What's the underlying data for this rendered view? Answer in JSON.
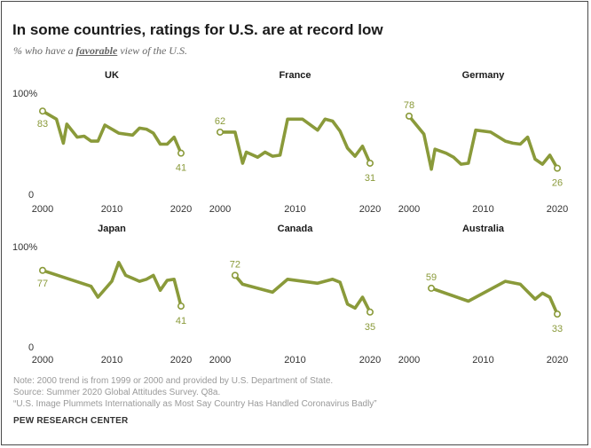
{
  "title": "In some countries, ratings for U.S. are at record low",
  "subtitle": {
    "prefix": "% who have a ",
    "emphasis": "favorable",
    "suffix": " view of the U.S."
  },
  "colors": {
    "line": "#8a9a3a",
    "label": "#8a9a3a",
    "text": "#1a1a1a",
    "axis": "#555555"
  },
  "chart_data": [
    {
      "type": "line",
      "title": "UK",
      "ylim": [
        0,
        100
      ],
      "xlim": [
        2000,
        2020
      ],
      "ytick_labels": [
        "100%",
        "0"
      ],
      "xtick_labels": [
        "2000",
        "2010",
        "2020"
      ],
      "x": [
        2000,
        2002,
        2003,
        2003.5,
        2005,
        2006,
        2007,
        2008,
        2009,
        2011,
        2013,
        2014,
        2015,
        2016,
        2017,
        2018,
        2019,
        2020
      ],
      "y": [
        83,
        75,
        51,
        70,
        57,
        58,
        53,
        53,
        69,
        61,
        59,
        66,
        65,
        61,
        50,
        50,
        57,
        41
      ],
      "start_label": "83",
      "end_label": "41"
    },
    {
      "type": "line",
      "title": "France",
      "ylim": [
        0,
        100
      ],
      "xlim": [
        2000,
        2020
      ],
      "xtick_labels": [
        "2000",
        "2010",
        "2020"
      ],
      "x": [
        2000,
        2002,
        2003,
        2003.5,
        2005,
        2006,
        2007,
        2008,
        2009,
        2011,
        2013,
        2014,
        2015,
        2016,
        2017,
        2018,
        2019,
        2020
      ],
      "y": [
        62,
        62,
        31,
        42,
        37,
        42,
        38,
        39,
        75,
        75,
        64,
        75,
        73,
        63,
        46,
        38,
        48,
        31
      ],
      "start_label": "62",
      "end_label": "31"
    },
    {
      "type": "line",
      "title": "Germany",
      "ylim": [
        0,
        100
      ],
      "xlim": [
        2000,
        2020
      ],
      "xtick_labels": [
        "2000",
        "2010",
        "2020"
      ],
      "x": [
        2000,
        2002,
        2003,
        2003.5,
        2005,
        2006,
        2007,
        2008,
        2009,
        2011,
        2013,
        2014,
        2015,
        2016,
        2017,
        2018,
        2019,
        2020
      ],
      "y": [
        78,
        60,
        25,
        45,
        41,
        37,
        30,
        31,
        64,
        62,
        53,
        51,
        50,
        57,
        35,
        30,
        39,
        26
      ],
      "start_label": "78",
      "end_label": "26"
    },
    {
      "type": "line",
      "title": "Japan",
      "ylim": [
        0,
        100
      ],
      "xlim": [
        2000,
        2020
      ],
      "ytick_labels": [
        "100%",
        "0"
      ],
      "xtick_labels": [
        "2000",
        "2010",
        "2020"
      ],
      "x": [
        2000,
        2007,
        2008,
        2010,
        2011,
        2012,
        2013,
        2014,
        2015,
        2016,
        2017,
        2018,
        2019,
        2020
      ],
      "y": [
        77,
        61,
        50,
        66,
        85,
        72,
        69,
        66,
        68,
        72,
        57,
        67,
        68,
        41
      ],
      "start_label": "77",
      "end_label": "41"
    },
    {
      "type": "line",
      "title": "Canada",
      "ylim": [
        0,
        100
      ],
      "xlim": [
        2000,
        2020
      ],
      "xtick_labels": [
        "2000",
        "2010",
        "2020"
      ],
      "x": [
        2002,
        2003,
        2007,
        2009,
        2013,
        2015,
        2016,
        2017,
        2018,
        2019,
        2020
      ],
      "y": [
        72,
        63,
        55,
        68,
        64,
        68,
        65,
        43,
        39,
        50,
        35
      ],
      "start_label": "72",
      "end_label": "35"
    },
    {
      "type": "line",
      "title": "Australia",
      "ylim": [
        0,
        100
      ],
      "xlim": [
        2000,
        2020
      ],
      "xtick_labels": [
        "2000",
        "2010",
        "2020"
      ],
      "x": [
        2003,
        2008,
        2013,
        2015,
        2017,
        2018,
        2019,
        2020
      ],
      "y": [
        59,
        46,
        66,
        63,
        48,
        54,
        50,
        33
      ],
      "start_label": "59",
      "end_label": "33"
    }
  ],
  "notes": [
    "Note: 2000 trend is from 1999 or 2000 and provided by U.S. Department of State.",
    "Source: Summer 2020 Global Attitudes Survey. Q8a.",
    "“U.S. Image Plummets Internationally as Most Say Country Has Handled Coronavirus Badly”"
  ],
  "brand": "PEW RESEARCH CENTER"
}
